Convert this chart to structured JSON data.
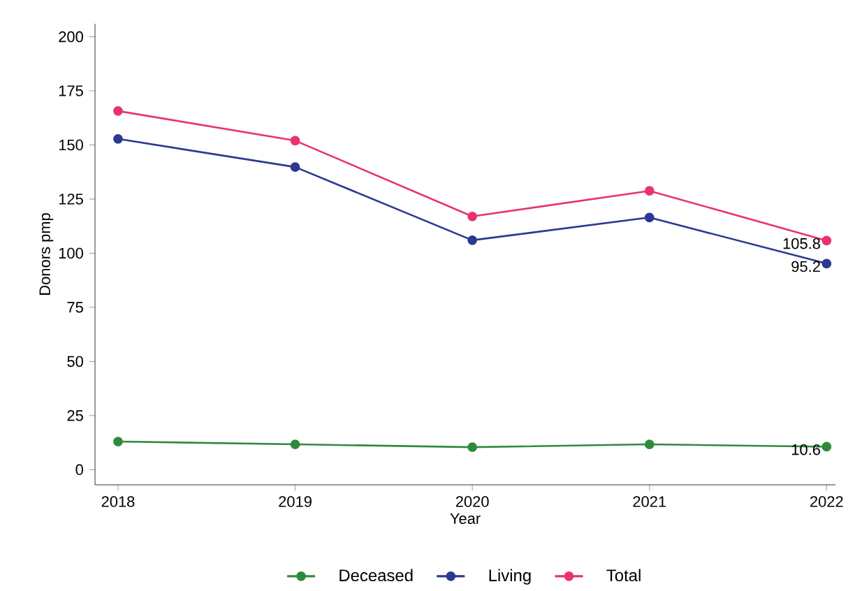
{
  "chart_data": {
    "type": "line",
    "xlabel": "Year",
    "ylabel": "Donors pmp",
    "x": [
      2018,
      2019,
      2020,
      2021,
      2022
    ],
    "series": [
      {
        "name": "Deceased",
        "color": "#2e8b3e",
        "values": [
          13,
          11.7,
          10.4,
          11.7,
          10.6
        ],
        "value_labels": [
          null,
          null,
          null,
          null,
          "10.6"
        ]
      },
      {
        "name": "Living",
        "color": "#2b3990",
        "values": [
          152.8,
          139.8,
          106,
          116.5,
          95.2
        ],
        "value_labels": [
          null,
          null,
          null,
          null,
          "95.2"
        ]
      },
      {
        "name": "Total",
        "color": "#e8336f",
        "values": [
          165.7,
          152,
          117,
          128.8,
          105.8
        ],
        "value_labels": [
          null,
          null,
          null,
          null,
          "105.8"
        ]
      }
    ],
    "xlim": [
      2017.87,
      2022.05
    ],
    "ylim": [
      -7,
      206
    ],
    "xticks": [
      2018,
      2019,
      2020,
      2021,
      2022
    ],
    "yticks": [
      0,
      25,
      50,
      75,
      100,
      125,
      150,
      175,
      200
    ],
    "grid": false,
    "legend": "bottom",
    "marker": "circle",
    "line_style": "solid"
  }
}
